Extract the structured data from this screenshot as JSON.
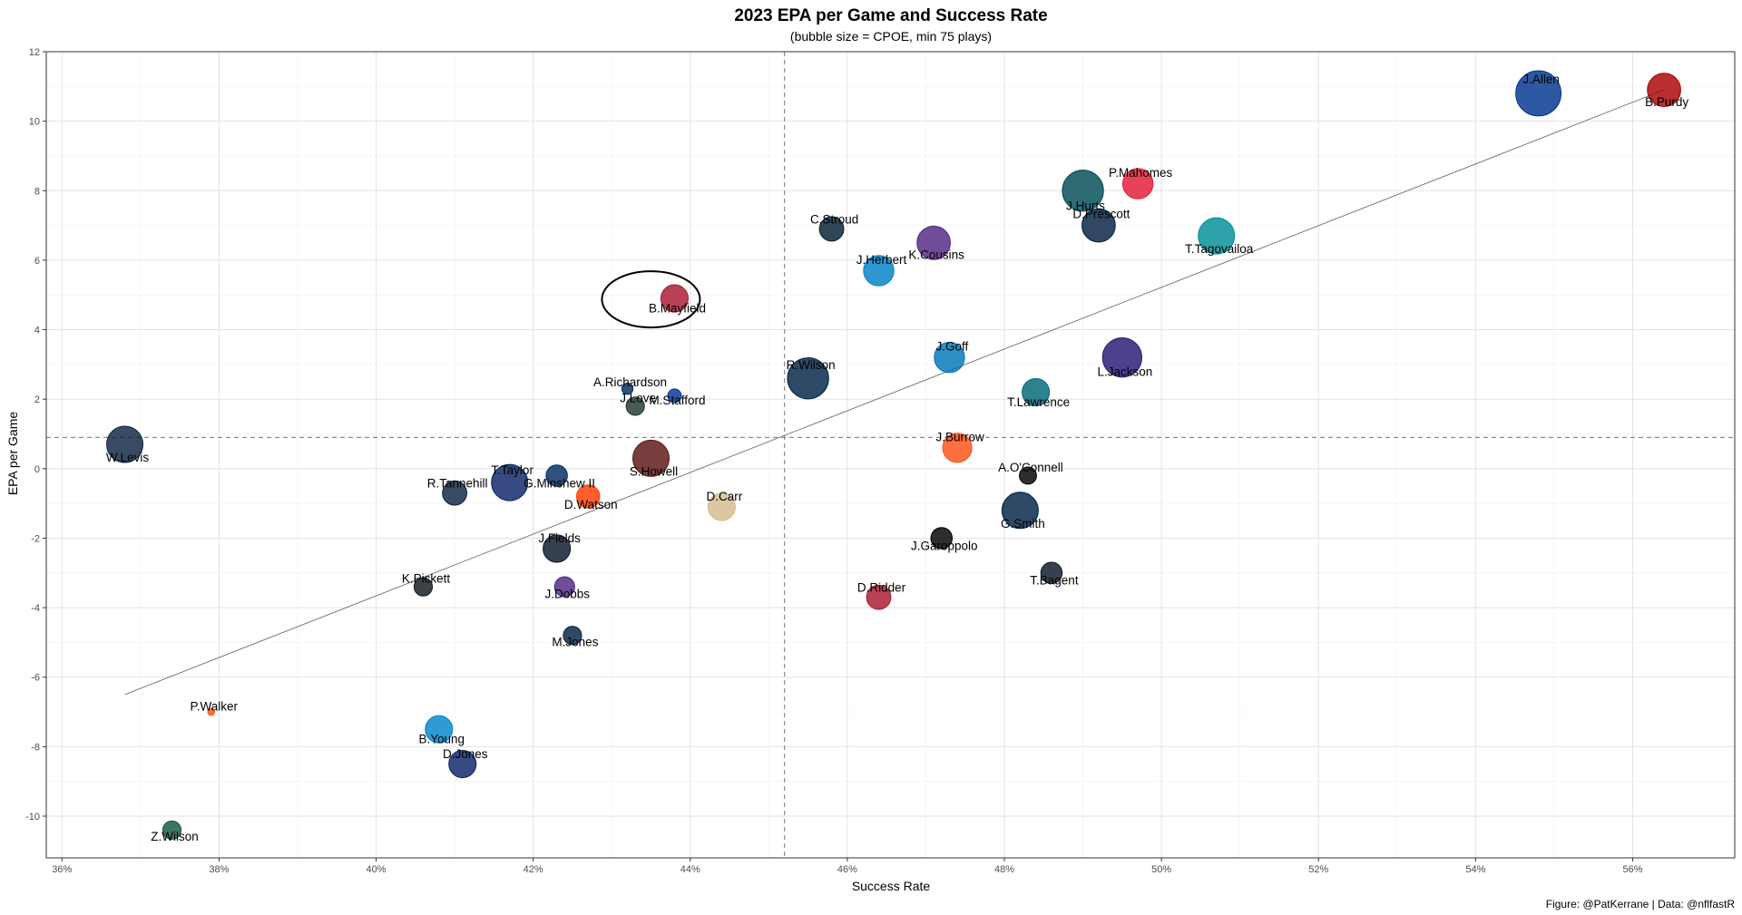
{
  "chart_data": {
    "type": "scatter",
    "title": "2023 EPA per Game and Success Rate",
    "subtitle": "(bubble size = CPOE, min 75 plays)",
    "xlabel": "Success Rate",
    "ylabel": "EPA per Game",
    "caption": "Figure: @PatKerrane | Data: @nflfastR",
    "xlim": [
      0.358,
      0.573
    ],
    "ylim": [
      -11.2,
      12.0
    ],
    "x_ticks": [
      0.36,
      0.38,
      0.4,
      0.42,
      0.44,
      0.46,
      0.48,
      0.5,
      0.52,
      0.54,
      0.56
    ],
    "x_tick_labels": [
      "36%",
      "38%",
      "40%",
      "42%",
      "44%",
      "46%",
      "48%",
      "50%",
      "52%",
      "54%",
      "56%"
    ],
    "y_ticks": [
      -10,
      -8,
      -6,
      -4,
      -2,
      0,
      2,
      4,
      6,
      8,
      10,
      12
    ],
    "y_tick_labels": [
      "-10",
      "-8",
      "-6",
      "-4",
      "-2",
      "0",
      "2",
      "4",
      "6",
      "8",
      "10",
      "12"
    ],
    "grid": true,
    "ref_lines": {
      "x_mean": 0.452,
      "y_mean": 0.9
    },
    "trend_line": {
      "x": [
        0.368,
        0.564
      ],
      "y": [
        -6.5,
        10.9
      ]
    },
    "highlight": "B.Mayfield",
    "points": [
      {
        "label": "J.Allen",
        "x": 0.548,
        "y": 10.8,
        "size": 6.5,
        "color": "#00338D"
      },
      {
        "label": "B.Purdy",
        "x": 0.564,
        "y": 10.9,
        "size": 4.5,
        "color": "#AA0000"
      },
      {
        "label": "P.Mahomes",
        "x": 0.497,
        "y": 8.2,
        "size": 4.0,
        "color": "#E31837"
      },
      {
        "label": "J.Hurts",
        "x": 0.49,
        "y": 8.0,
        "size": 5.8,
        "color": "#004C54"
      },
      {
        "label": "D.Prescott",
        "x": 0.492,
        "y": 7.0,
        "size": 4.5,
        "color": "#041E42"
      },
      {
        "label": "T.Tagovailoa",
        "x": 0.507,
        "y": 6.7,
        "size": 5.0,
        "color": "#008E97"
      },
      {
        "label": "C.Stroud",
        "x": 0.458,
        "y": 6.9,
        "size": 3.0,
        "color": "#03202F"
      },
      {
        "label": "K.Cousins",
        "x": 0.471,
        "y": 6.5,
        "size": 4.5,
        "color": "#4F2683"
      },
      {
        "label": "J.Herbert",
        "x": 0.464,
        "y": 5.7,
        "size": 4.0,
        "color": "#0080C6"
      },
      {
        "label": "B.Mayfield",
        "x": 0.438,
        "y": 4.9,
        "size": 3.5,
        "color": "#A71930"
      },
      {
        "label": "J.Goff",
        "x": 0.473,
        "y": 3.2,
        "size": 4.0,
        "color": "#0076B6"
      },
      {
        "label": "L.Jackson",
        "x": 0.495,
        "y": 3.2,
        "size": 5.5,
        "color": "#241773"
      },
      {
        "label": "R.Wilson",
        "x": 0.455,
        "y": 2.6,
        "size": 5.8,
        "color": "#002244"
      },
      {
        "label": "T.Lawrence",
        "x": 0.484,
        "y": 2.2,
        "size": 3.5,
        "color": "#006778"
      },
      {
        "label": "A.Richardson",
        "x": 0.432,
        "y": 2.3,
        "size": 0.8,
        "color": "#002C5F"
      },
      {
        "label": "M.Stafford",
        "x": 0.438,
        "y": 2.1,
        "size": 1.2,
        "color": "#003594"
      },
      {
        "label": "J.Love",
        "x": 0.433,
        "y": 1.8,
        "size": 2.0,
        "color": "#203731"
      },
      {
        "label": "W.Levis",
        "x": 0.368,
        "y": 0.7,
        "size": 5.0,
        "color": "#0C2340"
      },
      {
        "label": "J.Burrow",
        "x": 0.474,
        "y": 0.6,
        "size": 3.8,
        "color": "#FB4F14"
      },
      {
        "label": "S.Howell",
        "x": 0.435,
        "y": 0.3,
        "size": 5.0,
        "color": "#5A1414"
      },
      {
        "label": "T.Taylor",
        "x": 0.417,
        "y": -0.4,
        "size": 5.0,
        "color": "#0B2265"
      },
      {
        "label": "G.Minshew II",
        "x": 0.423,
        "y": -0.2,
        "size": 2.5,
        "color": "#002C5F"
      },
      {
        "label": "A.O'Connell",
        "x": 0.483,
        "y": -0.2,
        "size": 1.8,
        "color": "#000000"
      },
      {
        "label": "D.Watson",
        "x": 0.427,
        "y": -0.8,
        "size": 2.8,
        "color": "#FF3C00"
      },
      {
        "label": "R.Tannehill",
        "x": 0.41,
        "y": -0.7,
        "size": 3.0,
        "color": "#0C2340"
      },
      {
        "label": "G.Smith",
        "x": 0.482,
        "y": -1.2,
        "size": 5.0,
        "color": "#002244"
      },
      {
        "label": "D.Carr",
        "x": 0.444,
        "y": -1.1,
        "size": 3.5,
        "color": "#D3BC8D"
      },
      {
        "label": "J.Garoppolo",
        "x": 0.472,
        "y": -2.0,
        "size": 2.5,
        "color": "#000000"
      },
      {
        "label": "J.Fields",
        "x": 0.423,
        "y": -2.3,
        "size": 3.5,
        "color": "#0B162A"
      },
      {
        "label": "T.Bagent",
        "x": 0.486,
        "y": -3.0,
        "size": 2.5,
        "color": "#0B162A"
      },
      {
        "label": "K.Pickett",
        "x": 0.406,
        "y": -3.4,
        "size": 2.0,
        "color": "#101820"
      },
      {
        "label": "J.Dobbs",
        "x": 0.424,
        "y": -3.4,
        "size": 2.3,
        "color": "#4F2683"
      },
      {
        "label": "D.Ridder",
        "x": 0.464,
        "y": -3.7,
        "size": 3.0,
        "color": "#A71930"
      },
      {
        "label": "M.Jones",
        "x": 0.425,
        "y": -4.8,
        "size": 2.0,
        "color": "#002244"
      },
      {
        "label": "P.Walker",
        "x": 0.379,
        "y": -7.0,
        "size": 0.1,
        "color": "#FB4F14"
      },
      {
        "label": "B.Young",
        "x": 0.408,
        "y": -7.5,
        "size": 3.5,
        "color": "#0085CA"
      },
      {
        "label": "D.Jones",
        "x": 0.411,
        "y": -8.5,
        "size": 3.5,
        "color": "#0B2265"
      },
      {
        "label": "Z.Wilson",
        "x": 0.374,
        "y": -10.4,
        "size": 2.0,
        "color": "#125740"
      }
    ]
  }
}
